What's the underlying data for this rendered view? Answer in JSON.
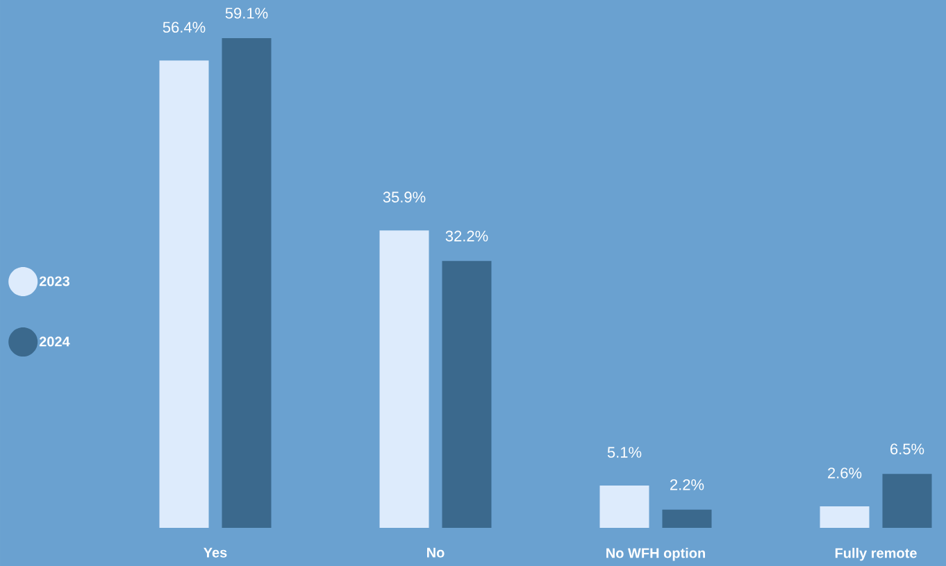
{
  "chart_data": {
    "type": "bar",
    "categories": [
      "Yes",
      "No",
      "No WFH option",
      "Fully remote"
    ],
    "series": [
      {
        "name": "2023",
        "color": "#ddebfc",
        "values": [
          56.4,
          35.9,
          5.1,
          2.6
        ],
        "value_labels": [
          "56.4%",
          "35.9%",
          "5.1%",
          "2.6%"
        ]
      },
      {
        "name": "2024",
        "color": "#3b698d",
        "values": [
          59.1,
          32.2,
          2.2,
          6.5
        ],
        "value_labels": [
          "59.1%",
          "32.2%",
          "2.2%",
          "6.5%"
        ]
      }
    ],
    "legend": "left",
    "grid": false
  }
}
